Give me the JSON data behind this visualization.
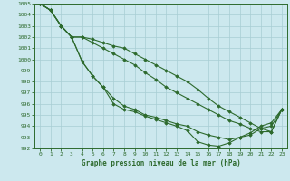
{
  "xlabel": "Graphe pression niveau de la mer (hPa)",
  "ylim": [
    992,
    1005
  ],
  "xlim": [
    -0.5,
    23.5
  ],
  "yticks": [
    992,
    993,
    994,
    995,
    996,
    997,
    998,
    999,
    1000,
    1001,
    1002,
    1003,
    1004,
    1005
  ],
  "xticks": [
    0,
    1,
    2,
    3,
    4,
    5,
    6,
    7,
    8,
    9,
    10,
    11,
    12,
    13,
    14,
    15,
    16,
    17,
    18,
    19,
    20,
    21,
    22,
    23
  ],
  "line_color": "#2d6a2d",
  "bg_color": "#cce8ee",
  "grid_color": "#a8cdd4",
  "series": [
    [
      1005.0,
      1004.4,
      1003.0,
      1002.0,
      999.8,
      998.5,
      997.5,
      996.5,
      995.8,
      995.5,
      995.0,
      994.8,
      994.5,
      994.2,
      994.0,
      993.5,
      993.2,
      993.0,
      992.8,
      993.0,
      993.2,
      993.8,
      994.0,
      995.5
    ],
    [
      1005.0,
      1004.4,
      1003.0,
      1002.0,
      999.8,
      998.5,
      997.5,
      996.0,
      995.5,
      995.3,
      994.9,
      994.6,
      994.3,
      994.0,
      993.6,
      992.6,
      992.3,
      992.2,
      992.5,
      993.0,
      993.4,
      994.0,
      994.3,
      995.5
    ],
    [
      1005.0,
      1004.4,
      1003.0,
      1002.0,
      1002.0,
      1001.8,
      1001.5,
      1001.2,
      1001.0,
      1000.5,
      1000.0,
      999.5,
      999.0,
      998.5,
      998.0,
      997.3,
      996.5,
      995.8,
      995.3,
      994.8,
      994.3,
      993.8,
      993.5,
      995.5
    ],
    [
      1005.0,
      1004.4,
      1003.0,
      1002.0,
      1002.0,
      1001.5,
      1001.0,
      1000.5,
      1000.0,
      999.5,
      998.8,
      998.2,
      997.5,
      997.0,
      996.5,
      996.0,
      995.5,
      995.0,
      994.5,
      994.2,
      993.8,
      993.5,
      993.5,
      995.5
    ]
  ]
}
